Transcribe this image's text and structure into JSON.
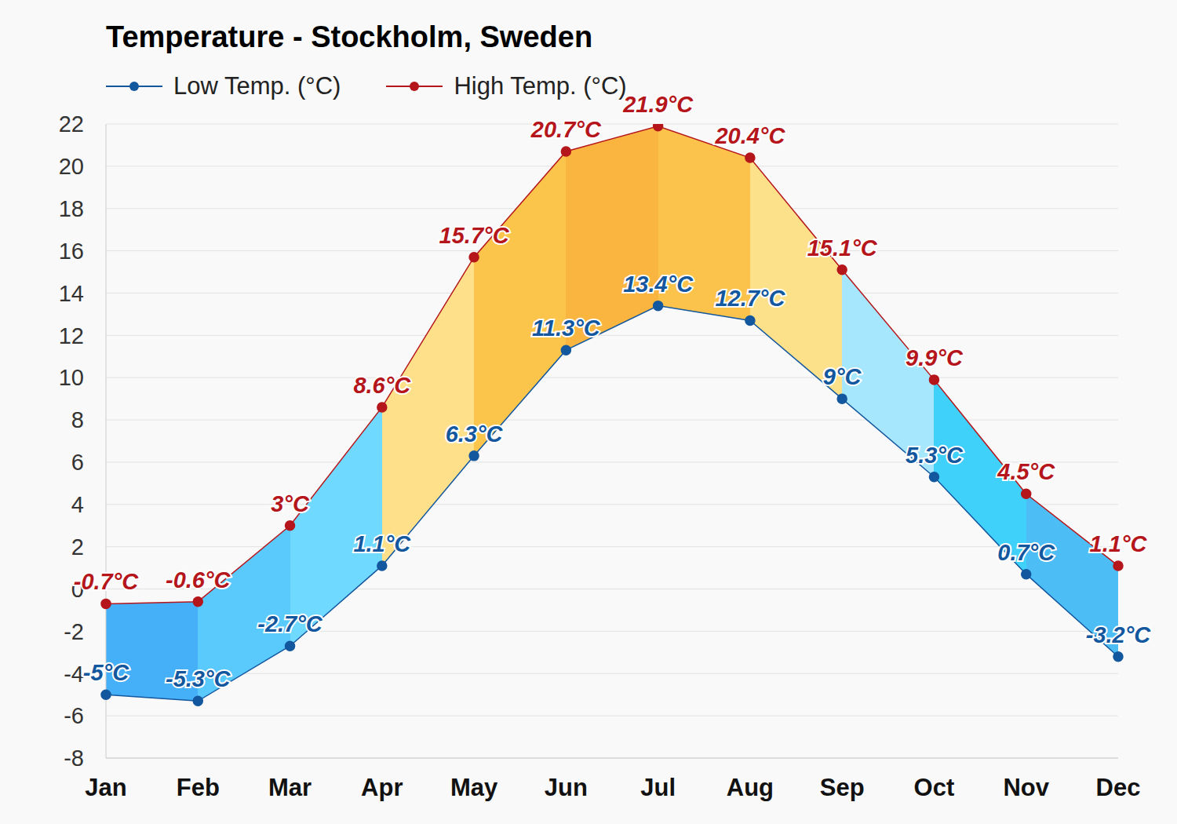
{
  "chart_data": {
    "type": "line",
    "title": "Temperature - Stockholm, Sweden",
    "categories": [
      "Jan",
      "Feb",
      "Mar",
      "Apr",
      "May",
      "Jun",
      "Jul",
      "Aug",
      "Sep",
      "Oct",
      "Nov",
      "Dec"
    ],
    "series": [
      {
        "name": "Low Temp. (°C)",
        "color": "#13579e",
        "marker": "circle",
        "values": [
          -5,
          -5.3,
          -2.7,
          1.1,
          6.3,
          11.3,
          13.4,
          12.7,
          9,
          5.3,
          0.7,
          -3.2
        ],
        "value_labels": [
          "-5°C",
          "-5.3°C",
          "-2.7°C",
          "1.1°C",
          "6.3°C",
          "11.3°C",
          "13.4°C",
          "12.7°C",
          "9°C",
          "5.3°C",
          "0.7°C",
          "-3.2°C"
        ]
      },
      {
        "name": "High Temp. (°C)",
        "color": "#b5161b",
        "marker": "circle",
        "values": [
          -0.7,
          -0.6,
          3,
          8.6,
          15.7,
          20.7,
          21.9,
          20.4,
          15.1,
          9.9,
          4.5,
          1.1
        ],
        "value_labels": [
          "-0.7°C",
          "-0.6°C",
          "3°C",
          "8.6°C",
          "15.7°C",
          "20.7°C",
          "21.9°C",
          "20.4°C",
          "15.1°C",
          "9.9°C",
          "4.5°C",
          "1.1°C"
        ]
      }
    ],
    "ylim": [
      -8,
      22
    ],
    "yticks": [
      -8,
      -6,
      -4,
      -2,
      0,
      2,
      4,
      6,
      8,
      10,
      12,
      14,
      16,
      18,
      20,
      22
    ],
    "grid": true,
    "legend": "top",
    "data_labels": true
  }
}
